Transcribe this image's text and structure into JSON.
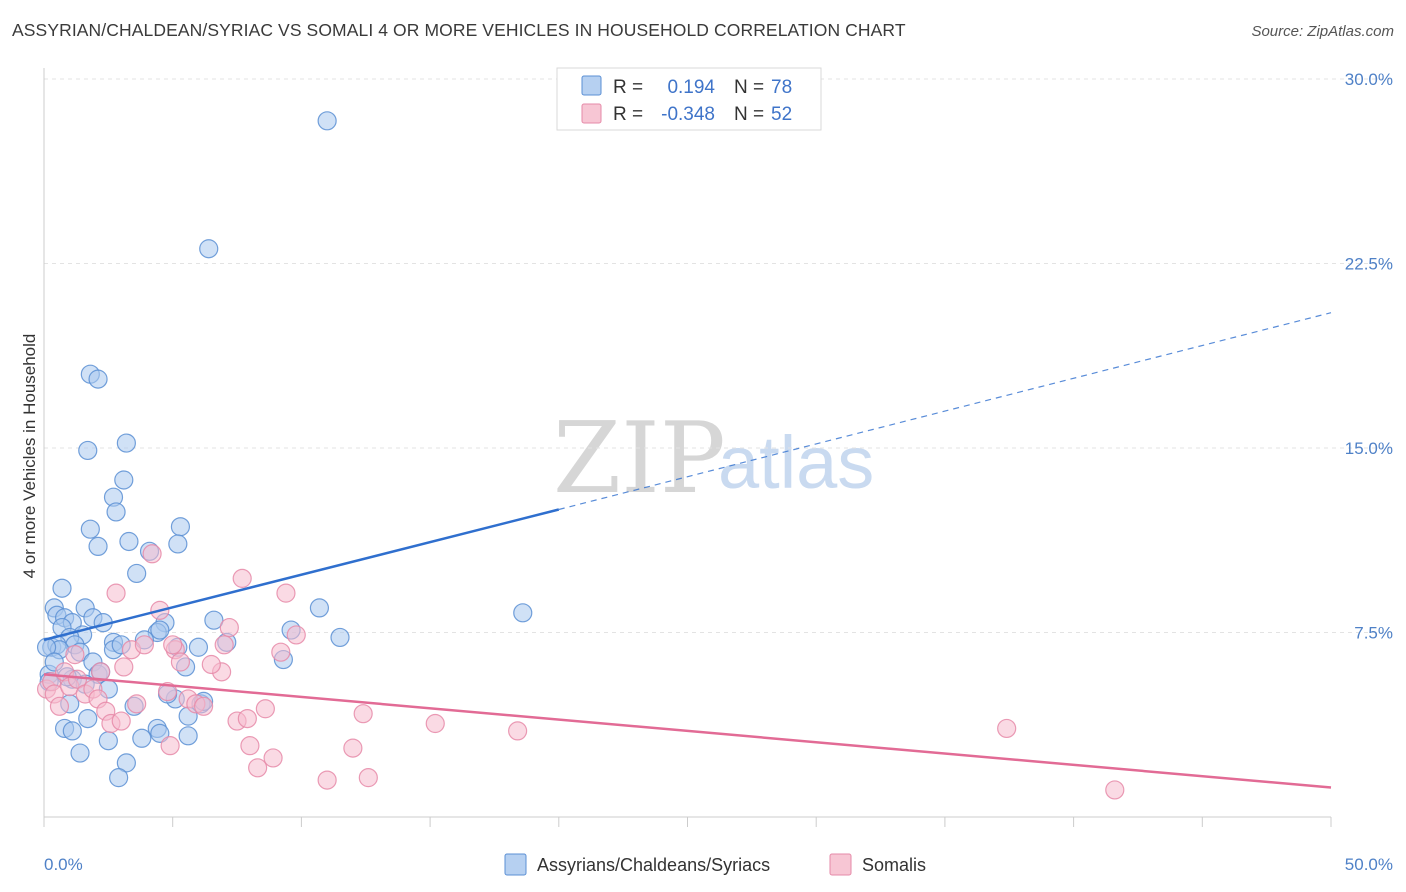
{
  "title": "ASSYRIAN/CHALDEAN/SYRIAC VS SOMALI 4 OR MORE VEHICLES IN HOUSEHOLD CORRELATION CHART",
  "source": "Source: ZipAtlas.com",
  "watermark": {
    "zip": "ZIP",
    "atlas": "atlas"
  },
  "colors": {
    "blue_fill": "#a9c8ef",
    "blue_stroke": "#5b8fd4",
    "blue_line": "#2f6fce",
    "pink_fill": "#f6bccd",
    "pink_stroke": "#e68aa8",
    "pink_line": "#e26b95",
    "grid": "#e3e3e3",
    "axis": "#cccccc",
    "tick_text": "#4f81c7"
  },
  "legend": {
    "rows": [
      {
        "r_label": "R =",
        "r_value": "0.194",
        "n_label": "N =",
        "n_value": "78"
      },
      {
        "r_label": "R =",
        "r_value": "-0.348",
        "n_label": "N =",
        "n_value": "52"
      }
    ]
  },
  "chart_data": {
    "type": "scatter",
    "title": "ASSYRIAN/CHALDEAN/SYRIAC VS SOMALI 4 OR MORE VEHICLES IN HOUSEHOLD CORRELATION CHART",
    "xlabel": "",
    "ylabel": "4 or more Vehicles in Household",
    "xlim": [
      0,
      50
    ],
    "ylim": [
      0,
      30
    ],
    "x_tick_labels": [
      {
        "value": 0,
        "label": "0.0%"
      },
      {
        "value": 50,
        "label": "50.0%"
      }
    ],
    "y_tick_labels": [
      {
        "value": 7.5,
        "label": "7.5%"
      },
      {
        "value": 15,
        "label": "15.0%"
      },
      {
        "value": 22.5,
        "label": "22.5%"
      },
      {
        "value": 30,
        "label": "30.0%"
      }
    ],
    "grid": true,
    "legend_position": "top-center",
    "series": [
      {
        "name": "Assyrians/Chaldeans/Syriacs",
        "color": "#a9c8ef",
        "r": 0.194,
        "n": 78,
        "trend": {
          "x_start": 0,
          "y_start": 7.2,
          "x_solid_end": 20,
          "y_solid_end": 12.5,
          "x_end": 50,
          "y_end": 20.5
        },
        "points": [
          [
            11.0,
            28.3
          ],
          [
            6.4,
            23.1
          ],
          [
            1.8,
            18.0
          ],
          [
            2.1,
            17.8
          ],
          [
            3.2,
            15.2
          ],
          [
            1.7,
            14.9
          ],
          [
            3.1,
            13.7
          ],
          [
            2.7,
            13.0
          ],
          [
            2.8,
            12.4
          ],
          [
            1.8,
            11.7
          ],
          [
            5.3,
            11.8
          ],
          [
            3.3,
            11.2
          ],
          [
            2.1,
            11.0
          ],
          [
            5.2,
            11.1
          ],
          [
            4.1,
            10.8
          ],
          [
            3.6,
            9.9
          ],
          [
            0.7,
            9.3
          ],
          [
            0.4,
            8.5
          ],
          [
            1.6,
            8.5
          ],
          [
            10.7,
            8.5
          ],
          [
            18.6,
            8.3
          ],
          [
            0.5,
            8.2
          ],
          [
            0.8,
            8.1
          ],
          [
            1.9,
            8.1
          ],
          [
            1.1,
            7.9
          ],
          [
            2.3,
            7.9
          ],
          [
            4.7,
            7.9
          ],
          [
            6.6,
            8.0
          ],
          [
            9.6,
            7.6
          ],
          [
            0.7,
            7.7
          ],
          [
            1.5,
            7.4
          ],
          [
            4.4,
            7.5
          ],
          [
            1.0,
            7.3
          ],
          [
            2.7,
            7.1
          ],
          [
            3.9,
            7.2
          ],
          [
            11.5,
            7.3
          ],
          [
            0.3,
            6.9
          ],
          [
            0.5,
            7.0
          ],
          [
            1.2,
            7.0
          ],
          [
            0.6,
            6.8
          ],
          [
            2.7,
            6.8
          ],
          [
            5.2,
            6.9
          ],
          [
            6.0,
            6.9
          ],
          [
            7.1,
            7.1
          ],
          [
            4.5,
            7.6
          ],
          [
            1.4,
            6.7
          ],
          [
            1.9,
            6.3
          ],
          [
            5.5,
            6.1
          ],
          [
            9.3,
            6.4
          ],
          [
            2.1,
            5.8
          ],
          [
            1.1,
            5.6
          ],
          [
            1.6,
            5.4
          ],
          [
            2.5,
            5.2
          ],
          [
            0.2,
            5.8
          ],
          [
            2.2,
            5.9
          ],
          [
            0.9,
            5.7
          ],
          [
            5.1,
            4.8
          ],
          [
            6.1,
            4.6
          ],
          [
            3.5,
            4.5
          ],
          [
            1.0,
            4.6
          ],
          [
            1.7,
            4.0
          ],
          [
            5.6,
            4.1
          ],
          [
            0.8,
            3.6
          ],
          [
            1.1,
            3.5
          ],
          [
            4.4,
            3.6
          ],
          [
            5.6,
            3.3
          ],
          [
            4.5,
            3.4
          ],
          [
            3.8,
            3.2
          ],
          [
            2.5,
            3.1
          ],
          [
            1.4,
            2.6
          ],
          [
            3.2,
            2.2
          ],
          [
            2.9,
            1.6
          ],
          [
            0.1,
            6.9
          ],
          [
            0.4,
            6.3
          ],
          [
            3.0,
            7.0
          ],
          [
            0.2,
            5.5
          ],
          [
            4.8,
            5.0
          ],
          [
            6.2,
            4.7
          ]
        ]
      },
      {
        "name": "Somalis",
        "color": "#f6bccd",
        "r": -0.348,
        "n": 52,
        "trend": {
          "x_start": 0,
          "y_start": 5.8,
          "x_end": 50,
          "y_end": 1.2
        },
        "points": [
          [
            0.1,
            5.2
          ],
          [
            0.3,
            5.5
          ],
          [
            0.4,
            5.0
          ],
          [
            0.8,
            5.9
          ],
          [
            1.0,
            5.3
          ],
          [
            1.3,
            5.6
          ],
          [
            1.6,
            5.0
          ],
          [
            1.9,
            5.2
          ],
          [
            2.1,
            4.8
          ],
          [
            2.4,
            4.3
          ],
          [
            2.6,
            3.8
          ],
          [
            3.0,
            3.9
          ],
          [
            3.1,
            6.1
          ],
          [
            3.4,
            6.8
          ],
          [
            3.9,
            7.0
          ],
          [
            4.2,
            10.7
          ],
          [
            4.5,
            8.4
          ],
          [
            4.8,
            5.1
          ],
          [
            5.1,
            6.8
          ],
          [
            5.3,
            6.3
          ],
          [
            5.6,
            4.8
          ],
          [
            5.9,
            4.6
          ],
          [
            6.2,
            4.5
          ],
          [
            6.9,
            5.9
          ],
          [
            7.2,
            7.7
          ],
          [
            7.5,
            3.9
          ],
          [
            7.7,
            9.7
          ],
          [
            7.9,
            4.0
          ],
          [
            8.0,
            2.9
          ],
          [
            8.3,
            2.0
          ],
          [
            8.6,
            4.4
          ],
          [
            8.9,
            2.4
          ],
          [
            9.2,
            6.7
          ],
          [
            9.4,
            9.1
          ],
          [
            9.8,
            7.4
          ],
          [
            11.0,
            1.5
          ],
          [
            12.0,
            2.8
          ],
          [
            12.4,
            4.2
          ],
          [
            12.6,
            1.6
          ],
          [
            15.2,
            3.8
          ],
          [
            18.4,
            3.5
          ],
          [
            37.4,
            3.6
          ],
          [
            41.6,
            1.1
          ],
          [
            2.8,
            9.1
          ],
          [
            1.2,
            6.6
          ],
          [
            3.6,
            4.6
          ],
          [
            4.9,
            2.9
          ],
          [
            6.5,
            6.2
          ],
          [
            0.6,
            4.5
          ],
          [
            2.2,
            5.9
          ],
          [
            5.0,
            7.0
          ],
          [
            7.0,
            7.0
          ]
        ]
      }
    ]
  },
  "bottom_legend": [
    {
      "label": "Assyrians/Chaldeans/Syriacs"
    },
    {
      "label": "Somalis"
    }
  ]
}
